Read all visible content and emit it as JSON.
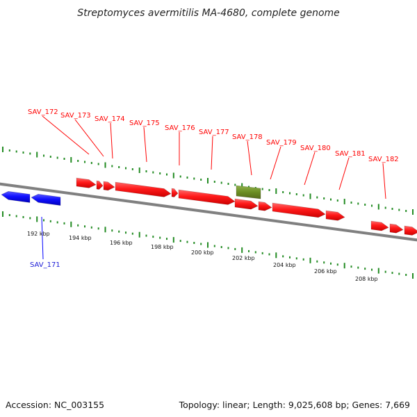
{
  "title": "Streptomyces avermitilis MA-4680, complete genome",
  "footer": {
    "accession": "Accession: NC_003155",
    "summary": "Topology: linear; Length: 9,025,608 bp; Genes: 7,669"
  },
  "colors": {
    "forward_gene": "#ff0000",
    "reverse_gene": "#0000ff",
    "selected_gene": "#6b8e23",
    "backbone": "#808080",
    "ticks": "#228b22"
  },
  "scale_labels": [
    "192 kbp",
    "194 kbp",
    "196 kbp",
    "198 kbp",
    "200 kbp",
    "202 kbp",
    "204 kbp",
    "206 kbp",
    "208 kbp"
  ],
  "forward_labels": [
    "SAV_172",
    "SAV_173",
    "SAV_174",
    "SAV_175",
    "SAV_176",
    "SAV_177",
    "SAV_178",
    "SAV_179",
    "SAV_180",
    "SAV_181",
    "SAV_182"
  ],
  "reverse_labels": [
    "SAV_171"
  ]
}
